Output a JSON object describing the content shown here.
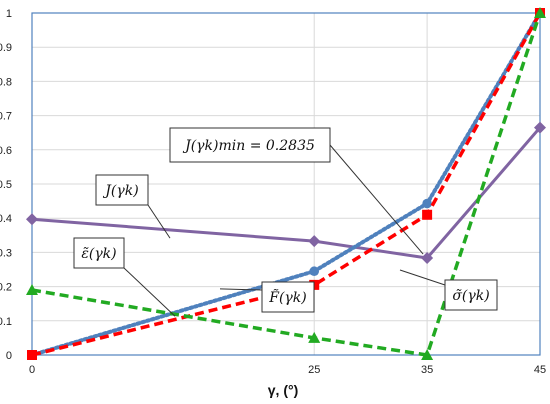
{
  "chart_data": {
    "type": "line",
    "x": [
      0,
      25,
      35,
      45
    ],
    "xlabel": "γ, (°)",
    "ylabel": "",
    "xlim": [
      0,
      45
    ],
    "ylim": [
      0,
      1
    ],
    "x_ticks": [
      "0",
      "25",
      "35",
      "45"
    ],
    "y_ticks": [
      "0",
      "0.1",
      "0.2",
      "0.3",
      "0.4",
      "0.5",
      "0.6",
      "0.7",
      "0.8",
      "0.9",
      "1"
    ],
    "grid": true,
    "series": [
      {
        "name": "J(γk)",
        "values": [
          0.397,
          0.333,
          0.2835,
          0.665
        ],
        "color": "#8064a2",
        "style": "solid",
        "marker": "diamond"
      },
      {
        "name": "ε̃(γk)",
        "values": [
          0.0,
          0.245,
          0.443,
          1.0
        ],
        "color": "#4f81bd",
        "style": "dotted",
        "marker": "circle"
      },
      {
        "name": "F̃(γk)",
        "values": [
          0.0,
          0.205,
          0.41,
          1.0
        ],
        "color": "#ff0000",
        "style": "dashed",
        "marker": "square"
      },
      {
        "name": "σ̃(γk)",
        "values": [
          0.19,
          0.05,
          0.0,
          1.0
        ],
        "color": "#22aa22",
        "style": "dashed",
        "marker": "triangle"
      }
    ],
    "annotations": [
      {
        "text": "J(γk)min = 0.2835"
      }
    ]
  }
}
